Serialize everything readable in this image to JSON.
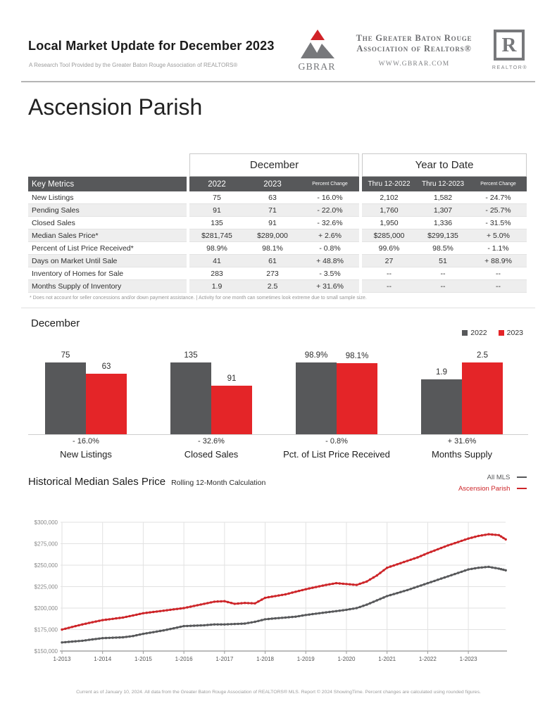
{
  "header": {
    "title": "Local Market Update for December 2023",
    "subtitle": "A Research Tool Provided by the Greater Baton Rouge Association of REALTORS®",
    "org_line1": "The Greater Baton Rouge",
    "org_line2": "Association of Realtors®",
    "org_url": "WWW.GBRAR.COM",
    "gbrar_abbrev": "GBRAR",
    "realtor_letter": "R",
    "realtor_label": "REALTOR®"
  },
  "page_title": "Ascension Parish",
  "table": {
    "key_metrics_label": "Key Metrics",
    "group_headers": [
      "December",
      "Year to Date"
    ],
    "dec_cols": [
      "2022",
      "2023",
      "Percent Change"
    ],
    "ytd_cols": [
      "Thru 12-2022",
      "Thru 12-2023",
      "Percent Change"
    ],
    "rows": [
      {
        "label": "New Listings",
        "dec": [
          "75",
          "63",
          "- 16.0%"
        ],
        "ytd": [
          "2,102",
          "1,582",
          "- 24.7%"
        ]
      },
      {
        "label": "Pending Sales",
        "dec": [
          "91",
          "71",
          "- 22.0%"
        ],
        "ytd": [
          "1,760",
          "1,307",
          "- 25.7%"
        ]
      },
      {
        "label": "Closed Sales",
        "dec": [
          "135",
          "91",
          "- 32.6%"
        ],
        "ytd": [
          "1,950",
          "1,336",
          "- 31.5%"
        ]
      },
      {
        "label": "Median Sales Price*",
        "dec": [
          "$281,745",
          "$289,000",
          "+ 2.6%"
        ],
        "ytd": [
          "$285,000",
          "$299,135",
          "+ 5.0%"
        ]
      },
      {
        "label": "Percent of List Price Received*",
        "dec": [
          "98.9%",
          "98.1%",
          "- 0.8%"
        ],
        "ytd": [
          "99.6%",
          "98.5%",
          "- 1.1%"
        ]
      },
      {
        "label": "Days on Market Until Sale",
        "dec": [
          "41",
          "61",
          "+ 48.8%"
        ],
        "ytd": [
          "27",
          "51",
          "+ 88.9%"
        ]
      },
      {
        "label": "Inventory of Homes for Sale",
        "dec": [
          "283",
          "273",
          "- 3.5%"
        ],
        "ytd": [
          "--",
          "--",
          "--"
        ]
      },
      {
        "label": "Months Supply of Inventory",
        "dec": [
          "1.9",
          "2.5",
          "+ 31.6%"
        ],
        "ytd": [
          "--",
          "--",
          "--"
        ]
      }
    ],
    "footnote": "* Does not account for seller concessions and/or down payment assistance.  |  Activity for one month can sometimes look extreme due to small sample size."
  },
  "chart_data": [
    {
      "type": "bar",
      "title": "December",
      "categories": [
        "New Listings",
        "Closed Sales",
        "Pct. of List Price Received",
        "Months Supply"
      ],
      "series": [
        {
          "name": "2022",
          "color": "#57585a",
          "values": [
            75,
            135,
            98.9,
            1.9
          ],
          "labels": [
            "75",
            "135",
            "98.9%",
            "1.9"
          ]
        },
        {
          "name": "2023",
          "color": "#e42528",
          "values": [
            63,
            91,
            98.1,
            2.5
          ],
          "labels": [
            "63",
            "91",
            "98.1%",
            "2.5"
          ]
        }
      ],
      "change_labels": [
        "- 16.0%",
        "- 32.6%",
        "- 0.8%",
        "+ 31.6%"
      ],
      "legend_position": "top-right",
      "grid": false
    },
    {
      "type": "line",
      "title": "Historical Median Sales Price",
      "subtitle": "Rolling 12-Month Calculation",
      "ylim": [
        150000,
        300000
      ],
      "y_tick_step": 25000,
      "y_tick_labels": [
        "$150,000",
        "$175,000",
        "$200,000",
        "$225,000",
        "$250,000",
        "$275,000",
        "$300,000"
      ],
      "x_ticks": [
        2013,
        2014,
        2015,
        2016,
        2017,
        2018,
        2019,
        2020,
        2021,
        2022,
        2023
      ],
      "x_tick_labels": [
        "1-2013",
        "1-2014",
        "1-2015",
        "1-2016",
        "1-2017",
        "1-2018",
        "1-2019",
        "1-2020",
        "1-2021",
        "1-2022",
        "1-2023"
      ],
      "x": [
        2013,
        2013.25,
        2013.5,
        2013.75,
        2014,
        2014.25,
        2014.5,
        2014.75,
        2015,
        2015.25,
        2015.5,
        2015.75,
        2016,
        2016.25,
        2016.5,
        2016.75,
        2017,
        2017.25,
        2017.5,
        2017.75,
        2018,
        2018.25,
        2018.5,
        2018.75,
        2019,
        2019.25,
        2019.5,
        2019.75,
        2020,
        2020.25,
        2020.5,
        2020.75,
        2021,
        2021.25,
        2021.5,
        2021.75,
        2022,
        2022.25,
        2022.5,
        2022.75,
        2023,
        2023.25,
        2023.5,
        2023.75,
        2023.92
      ],
      "series": [
        {
          "name": "All MLS",
          "color": "#57585a",
          "values": [
            160000,
            161000,
            162000,
            163500,
            165000,
            165500,
            166000,
            167500,
            170000,
            172000,
            174000,
            176500,
            179000,
            179500,
            180000,
            181000,
            181000,
            181500,
            182000,
            184000,
            187000,
            188000,
            189000,
            190000,
            192000,
            193500,
            195000,
            196500,
            198000,
            200000,
            204000,
            209000,
            214000,
            217500,
            221000,
            225000,
            229000,
            233000,
            237000,
            241000,
            245000,
            247000,
            248000,
            246000,
            244000
          ]
        },
        {
          "name": "Ascension Parish",
          "color": "#cd2428",
          "values": [
            175000,
            178000,
            181000,
            183500,
            186000,
            187500,
            189000,
            191500,
            194000,
            195500,
            197000,
            198500,
            200000,
            202500,
            205000,
            207500,
            208000,
            205000,
            206000,
            205500,
            212000,
            214000,
            216000,
            219000,
            222000,
            224500,
            227000,
            229000,
            228000,
            227000,
            231000,
            238000,
            247000,
            251000,
            255000,
            259000,
            264000,
            268500,
            273000,
            277000,
            281000,
            284000,
            286000,
            285000,
            280000
          ]
        }
      ],
      "legend_position": "top-right",
      "grid": true
    }
  ],
  "footer": {
    "text": "Current as of January 10, 2024. All data from the Greater Baton Rouge Association of REALTORS® MLS. Report © 2024 ShowingTime. Percent changes are calculated using rounded figures."
  },
  "colors": {
    "accent_red": "#cd2428",
    "bar_red": "#e42528",
    "dark_gray": "#57585a",
    "stripe": "#eeeeee"
  }
}
